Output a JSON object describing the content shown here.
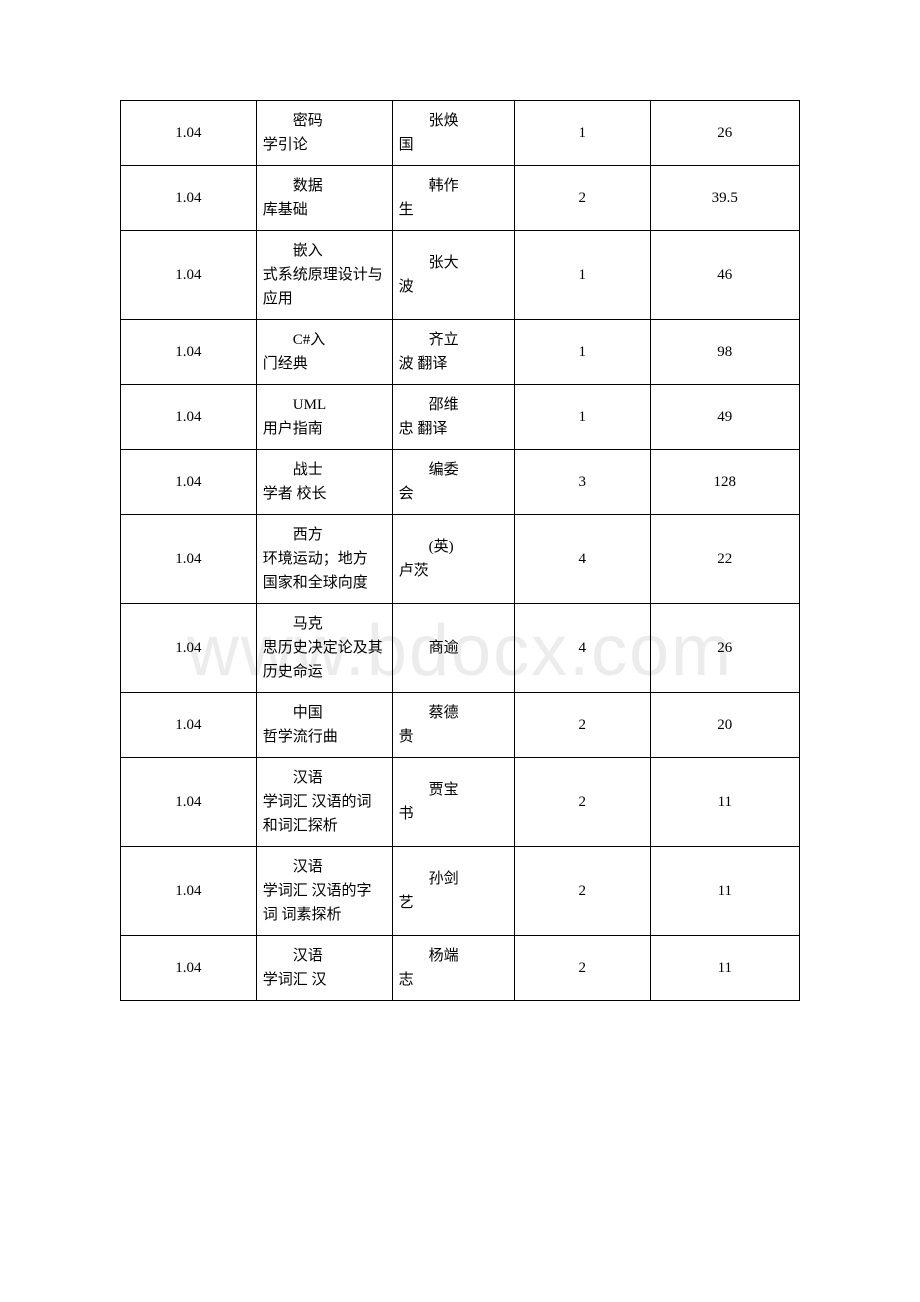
{
  "watermark": "www.bdocx.com",
  "table": {
    "rows": [
      {
        "code": "1.04",
        "title_line1": "密码",
        "title_rest": "学引论",
        "author_line1": "张焕",
        "author_rest": "国",
        "qty": "1",
        "price": "26"
      },
      {
        "code": "1.04",
        "title_line1": "数据",
        "title_rest": "库基础",
        "author_line1": "韩作",
        "author_rest": "生",
        "qty": "2",
        "price": "39.5"
      },
      {
        "code": "1.04",
        "title_line1": "嵌入",
        "title_rest": "式系统原理设计与应用",
        "author_line1": "张大",
        "author_rest": "波",
        "qty": "1",
        "price": "46"
      },
      {
        "code": "1.04",
        "title_line1": "C#入",
        "title_rest": "门经典",
        "author_line1": "齐立",
        "author_rest": "波 翻译",
        "qty": "1",
        "price": "98"
      },
      {
        "code": "1.04",
        "title_line1": "UML",
        "title_rest": "用户指南",
        "author_line1": "邵维",
        "author_rest": "忠 翻译",
        "qty": "1",
        "price": "49"
      },
      {
        "code": "1.04",
        "title_line1": "战士",
        "title_rest": "学者 校长",
        "author_line1": "编委",
        "author_rest": "会",
        "qty": "3",
        "price": "128"
      },
      {
        "code": "1.04",
        "title_line1": "西方",
        "title_rest": "环境运动；地方 国家和全球向度",
        "author_line1": "(英)",
        "author_rest": "卢茨",
        "qty": "4",
        "price": "22"
      },
      {
        "code": "1.04",
        "title_line1": "马克",
        "title_rest": "思历史决定论及其历史命运",
        "author_line1": "商逾",
        "author_rest": "",
        "qty": "4",
        "price": "26"
      },
      {
        "code": "1.04",
        "title_line1": "中国",
        "title_rest": "哲学流行曲",
        "author_line1": "蔡德",
        "author_rest": "贵",
        "qty": "2",
        "price": "20"
      },
      {
        "code": "1.04",
        "title_line1": "汉语",
        "title_rest": "学词汇 汉语的词和词汇探析",
        "author_line1": "贾宝",
        "author_rest": "书",
        "qty": "2",
        "price": "11"
      },
      {
        "code": "1.04",
        "title_line1": "汉语",
        "title_rest": "学词汇 汉语的字 词 词素探析",
        "author_line1": "孙剑",
        "author_rest": "艺",
        "qty": "2",
        "price": "11"
      },
      {
        "code": "1.04",
        "title_line1": "汉语",
        "title_rest": "学词汇 汉",
        "author_line1": "杨端",
        "author_rest": "志",
        "qty": "2",
        "price": "11"
      }
    ]
  }
}
